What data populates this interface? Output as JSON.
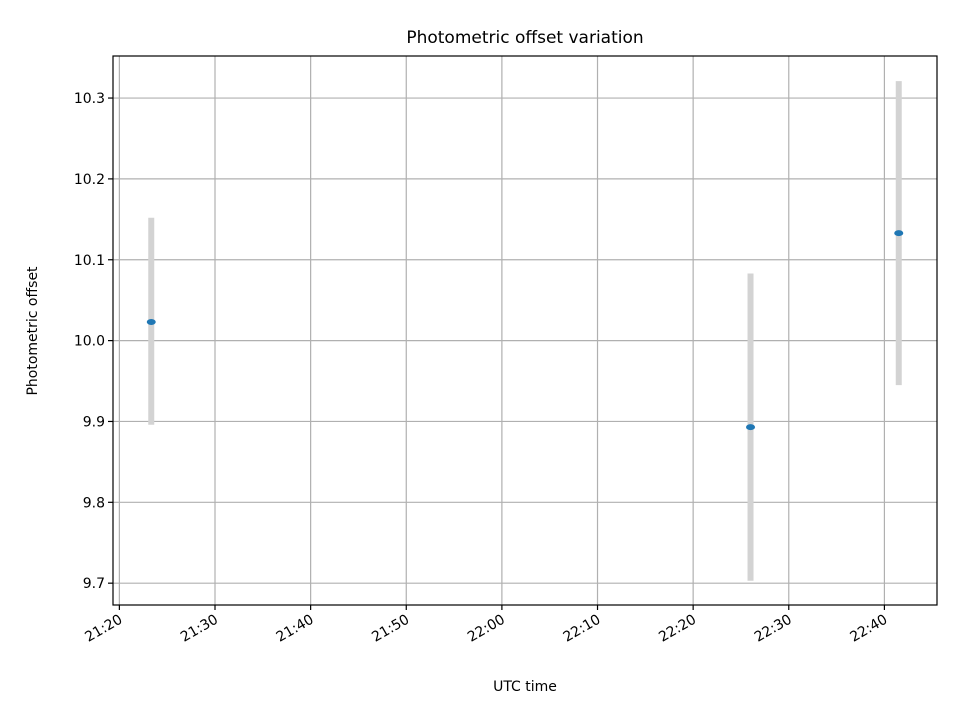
{
  "chart_data": {
    "type": "scatter",
    "title": "Photometric offset variation",
    "xlabel": "UTC time",
    "ylabel": "Photometric offset",
    "x_type": "time",
    "xlim": [
      "21:19:20",
      "22:45:30"
    ],
    "ylim": [
      9.673,
      10.352
    ],
    "x_ticks": [
      "21:20",
      "21:30",
      "21:40",
      "21:50",
      "22:00",
      "22:10",
      "22:20",
      "22:30",
      "22:40"
    ],
    "y_ticks": [
      "9.7",
      "9.8",
      "9.9",
      "10.0",
      "10.1",
      "10.2",
      "10.3"
    ],
    "grid": true,
    "series": [
      {
        "points": [
          {
            "x": "21:23:20",
            "y": 10.023,
            "yerr_low": 9.896,
            "yerr_high": 10.152
          },
          {
            "x": "22:26:00",
            "y": 9.893,
            "yerr_low": 9.703,
            "yerr_high": 10.083
          },
          {
            "x": "22:41:30",
            "y": 10.133,
            "yerr_low": 9.945,
            "yerr_high": 10.321
          }
        ]
      }
    ],
    "colors": {
      "marker": "#1f77b4",
      "errorbar": "#d3d3d3",
      "grid": "#b0b0b0",
      "axes": "#000000"
    }
  }
}
